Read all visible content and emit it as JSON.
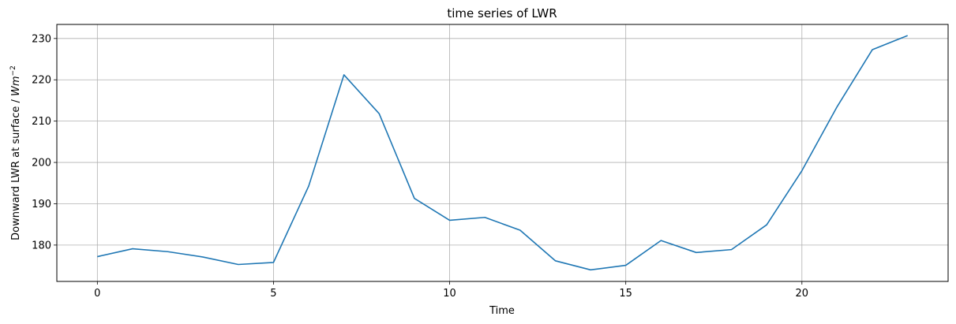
{
  "chart_data": {
    "type": "line",
    "title": "time series of LWR",
    "xlabel": "Time",
    "ylabel_main": "Downward LWR at surface / ",
    "ylabel_unit_base": "W",
    "ylabel_unit_var": "m",
    "ylabel_unit_exp": "−2",
    "xlim": [
      -1.15,
      24.15
    ],
    "ylim": [
      171.2,
      233.4
    ],
    "xticks": [
      0,
      5,
      10,
      15,
      20
    ],
    "yticks": [
      180,
      190,
      200,
      210,
      220,
      230
    ],
    "grid": true,
    "series_color": "#1f77b4",
    "x": [
      0,
      1,
      2,
      3,
      4,
      5,
      6,
      7,
      8,
      9,
      10,
      11,
      12,
      13,
      14,
      15,
      16,
      17,
      18,
      19,
      20,
      21,
      22,
      23
    ],
    "series": [
      {
        "values": [
          177.2,
          179.1,
          178.4,
          177.1,
          175.3,
          175.8,
          194.3,
          221.2,
          211.8,
          191.3,
          186.0,
          186.7,
          183.6,
          176.2,
          174.0,
          175.1,
          181.1,
          178.2,
          178.9,
          184.9,
          198.0,
          213.5,
          227.3,
          230.7
        ]
      }
    ]
  }
}
